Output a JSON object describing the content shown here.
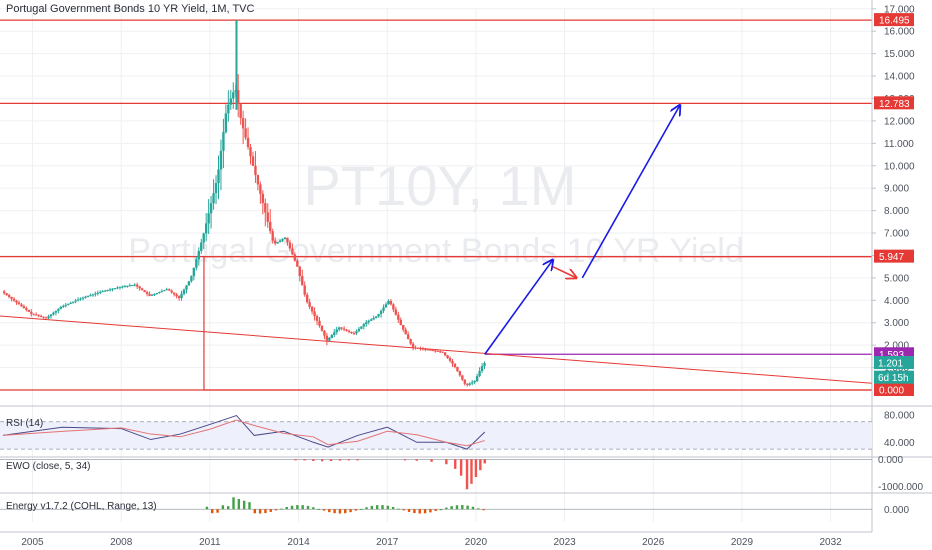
{
  "chart_title": "Portugal Government Bonds 10 YR Yield, 1M, TVC",
  "watermark": {
    "symbol": "PT10Y, 1M",
    "name": "Portugal Government Bonds 10 YR Yield"
  },
  "colors": {
    "up": "#26a69a",
    "down": "#ef5350",
    "level_line": "#e53935",
    "arrow": "#1a1ae6",
    "red_arrow": "#e53935",
    "purple": "#9c27b0",
    "rsi": "#4a4a8a",
    "ema": "#e57373",
    "background": "#ffffff",
    "grid": "#eef0f4"
  },
  "chart_data": {
    "type": "line",
    "title": "Portugal Government Bonds 10 YR Yield, 1M, TVC",
    "x_ticks": [
      "2005",
      "2008",
      "2011",
      "2014",
      "2017",
      "2020",
      "2023",
      "2026",
      "2029",
      "2032"
    ],
    "y_ticks": [
      "17.000",
      "16.000",
      "15.000",
      "14.000",
      "13.000",
      "12.000",
      "11.000",
      "10.000",
      "9.000",
      "8.000",
      "7.000",
      "6.000",
      "5.000",
      "4.000",
      "3.000",
      "2.000",
      "1.000"
    ],
    "ylim": [
      0,
      17
    ],
    "price_path": [
      {
        "x": 2004.0,
        "y": 4.4
      },
      {
        "x": 2005.0,
        "y": 3.4
      },
      {
        "x": 2005.5,
        "y": 3.2
      },
      {
        "x": 2006.0,
        "y": 3.7
      },
      {
        "x": 2006.7,
        "y": 4.1
      },
      {
        "x": 2007.4,
        "y": 4.4
      },
      {
        "x": 2008.0,
        "y": 4.6
      },
      {
        "x": 2008.5,
        "y": 4.7
      },
      {
        "x": 2009.0,
        "y": 4.2
      },
      {
        "x": 2009.6,
        "y": 4.5
      },
      {
        "x": 2010.0,
        "y": 4.1
      },
      {
        "x": 2010.4,
        "y": 5.0
      },
      {
        "x": 2010.8,
        "y": 6.8
      },
      {
        "x": 2011.3,
        "y": 9.5
      },
      {
        "x": 2011.6,
        "y": 12.5
      },
      {
        "x": 2011.9,
        "y": 13.5
      },
      {
        "x": 2012.1,
        "y": 12.0
      },
      {
        "x": 2012.4,
        "y": 10.5
      },
      {
        "x": 2012.8,
        "y": 8.5
      },
      {
        "x": 2013.2,
        "y": 6.5
      },
      {
        "x": 2013.6,
        "y": 6.8
      },
      {
        "x": 2014.0,
        "y": 5.5
      },
      {
        "x": 2014.3,
        "y": 4.0
      },
      {
        "x": 2014.7,
        "y": 3.0
      },
      {
        "x": 2015.0,
        "y": 2.2
      },
      {
        "x": 2015.4,
        "y": 2.8
      },
      {
        "x": 2015.9,
        "y": 2.5
      },
      {
        "x": 2016.3,
        "y": 3.0
      },
      {
        "x": 2016.7,
        "y": 3.3
      },
      {
        "x": 2017.1,
        "y": 4.0
      },
      {
        "x": 2017.5,
        "y": 2.9
      },
      {
        "x": 2017.9,
        "y": 1.9
      },
      {
        "x": 2018.4,
        "y": 1.8
      },
      {
        "x": 2018.9,
        "y": 1.7
      },
      {
        "x": 2019.3,
        "y": 1.1
      },
      {
        "x": 2019.7,
        "y": 0.2
      },
      {
        "x": 2020.0,
        "y": 0.4
      },
      {
        "x": 2020.3,
        "y": 1.2
      }
    ],
    "spike_high": {
      "x": 2011.9,
      "y": 16.495
    },
    "horizontal_levels": [
      {
        "label": "16.495",
        "y": 16.495
      },
      {
        "label": "12.783",
        "y": 12.783
      },
      {
        "label": "5.947",
        "y": 5.947
      },
      {
        "label": "1.593",
        "y": 1.593
      },
      {
        "label": "0.000",
        "y": 0.0
      }
    ],
    "price_labels": [
      {
        "text": "1.201",
        "y": 1.201
      },
      {
        "text": "6d 15h",
        "y": 0.55
      }
    ],
    "trendline": {
      "x1": 2003.9,
      "y1": 3.3,
      "x2": 2033.4,
      "y2": 0.3
    },
    "drawing_rect": {
      "x1": 2010.8,
      "x2": 2033.4,
      "y_top": 5.947,
      "y_bottom": 0.0
    },
    "projection_arrows": [
      {
        "x1": 2020.3,
        "y1": 1.593,
        "x2": 2022.6,
        "y2": 5.8,
        "color": "arrow"
      },
      {
        "x1": 2022.6,
        "y1": 5.5,
        "x2": 2023.4,
        "y2": 5.0,
        "color": "red_arrow"
      },
      {
        "x1": 2023.6,
        "y1": 5.0,
        "x2": 2026.9,
        "y2": 12.7,
        "color": "arrow"
      }
    ],
    "rsi": {
      "label": "RSI (14)",
      "y_ticks": [
        "80.000",
        "40.000"
      ],
      "ylim": [
        20,
        90
      ],
      "bands": [
        70,
        30
      ],
      "path": [
        {
          "x": 2004.0,
          "y": 50
        },
        {
          "x": 2006.0,
          "y": 62
        },
        {
          "x": 2008.0,
          "y": 60
        },
        {
          "x": 2009.0,
          "y": 44
        },
        {
          "x": 2010.0,
          "y": 52
        },
        {
          "x": 2011.0,
          "y": 66
        },
        {
          "x": 2011.9,
          "y": 79
        },
        {
          "x": 2012.5,
          "y": 50
        },
        {
          "x": 2013.5,
          "y": 56
        },
        {
          "x": 2014.5,
          "y": 40
        },
        {
          "x": 2015.0,
          "y": 33
        },
        {
          "x": 2016.0,
          "y": 50
        },
        {
          "x": 2017.0,
          "y": 62
        },
        {
          "x": 2018.0,
          "y": 40
        },
        {
          "x": 2019.0,
          "y": 40
        },
        {
          "x": 2019.7,
          "y": 30
        },
        {
          "x": 2020.3,
          "y": 55
        }
      ]
    },
    "ewo": {
      "label": "EWO (close, 5, 34)",
      "y_ticks": [
        "0.000",
        "-1000.000"
      ],
      "ylim": [
        -1200,
        50
      ],
      "bars": [
        {
          "x": 2013.9,
          "y": -20
        },
        {
          "x": 2014.2,
          "y": -40
        },
        {
          "x": 2014.5,
          "y": -60
        },
        {
          "x": 2014.8,
          "y": -70
        },
        {
          "x": 2015.1,
          "y": -60
        },
        {
          "x": 2015.4,
          "y": -45
        },
        {
          "x": 2015.7,
          "y": -30
        },
        {
          "x": 2016.0,
          "y": -20
        },
        {
          "x": 2017.6,
          "y": -30
        },
        {
          "x": 2018.0,
          "y": -50
        },
        {
          "x": 2018.5,
          "y": -90
        },
        {
          "x": 2019.0,
          "y": -180
        },
        {
          "x": 2019.3,
          "y": -350
        },
        {
          "x": 2019.5,
          "y": -600
        },
        {
          "x": 2019.7,
          "y": -1100
        },
        {
          "x": 2019.85,
          "y": -900
        },
        {
          "x": 2020.0,
          "y": -650
        },
        {
          "x": 2020.15,
          "y": -400
        },
        {
          "x": 2020.3,
          "y": -150
        }
      ]
    },
    "energy": {
      "label": "Energy v1.7.2 (COHL, Range, 13)",
      "y_ticks": [
        "0.000"
      ],
      "ylim": [
        -1.5,
        1.8
      ]
    }
  }
}
